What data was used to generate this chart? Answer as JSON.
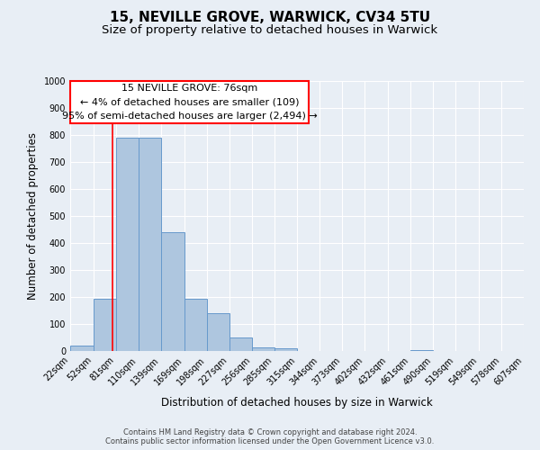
{
  "title": "15, NEVILLE GROVE, WARWICK, CV34 5TU",
  "subtitle": "Size of property relative to detached houses in Warwick",
  "xlabel": "Distribution of detached houses by size in Warwick",
  "ylabel": "Number of detached properties",
  "bin_edges": [
    22,
    52,
    81,
    110,
    139,
    169,
    198,
    227,
    256,
    285,
    315,
    344,
    373,
    402,
    432,
    461,
    490,
    519,
    549,
    578,
    607
  ],
  "bar_heights": [
    20,
    195,
    790,
    790,
    440,
    195,
    140,
    50,
    15,
    10,
    0,
    0,
    0,
    0,
    0,
    5,
    0,
    0,
    0,
    0
  ],
  "bar_color": "#aec6df",
  "bar_edge_color": "#6699cc",
  "bg_color": "#e8eef5",
  "grid_color": "#ffffff",
  "red_line_x": 76,
  "annotation_text_line1": "15 NEVILLE GROVE: 76sqm",
  "annotation_text_line2": "← 4% of detached houses are smaller (109)",
  "annotation_text_line3": "95% of semi-detached houses are larger (2,494) →",
  "ylim": [
    0,
    1000
  ],
  "yticks": [
    0,
    100,
    200,
    300,
    400,
    500,
    600,
    700,
    800,
    900,
    1000
  ],
  "footer_line1": "Contains HM Land Registry data © Crown copyright and database right 2024.",
  "footer_line2": "Contains public sector information licensed under the Open Government Licence v3.0.",
  "title_fontsize": 11,
  "subtitle_fontsize": 9.5,
  "tick_label_fontsize": 7,
  "ylabel_fontsize": 8.5,
  "xlabel_fontsize": 8.5,
  "annotation_fontsize": 8,
  "footer_fontsize": 6
}
